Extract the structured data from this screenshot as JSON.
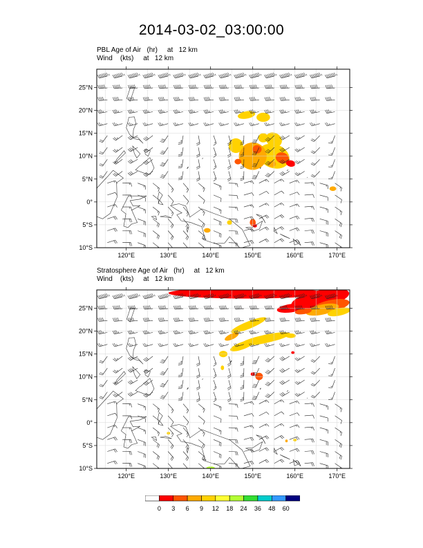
{
  "title": "2014-03-02_03:00:00",
  "panels": [
    {
      "id": "pbl",
      "line1": "PBL Age of Air   (hr)     at   12 km",
      "line2": "Wind    (kts)     at   12 km"
    },
    {
      "id": "strat",
      "line1": "Stratosphere Age of Air   (hr)     at   12 km",
      "line2": "Wind    (kts)     at   12 km"
    }
  ],
  "map": {
    "lon_range": [
      113,
      173
    ],
    "lat_range": [
      -10,
      29
    ],
    "lon_ticks": [
      120,
      130,
      140,
      150,
      160,
      170
    ],
    "lon_tick_labels": [
      "120°E",
      "130°E",
      "140°E",
      "150°E",
      "160°E",
      "170°E"
    ],
    "lat_ticks": [
      25,
      20,
      15,
      10,
      5,
      0,
      -5,
      -10
    ],
    "lat_tick_labels": [
      "25°N",
      "20°N",
      "15°N",
      "10°N",
      "5°N",
      "0°",
      "5°S",
      "10°S"
    ],
    "grid": true
  },
  "colorbar": {
    "levels": [
      "0",
      "3",
      "6",
      "9",
      "12",
      "18",
      "24",
      "36",
      "48",
      "60"
    ],
    "colors": [
      "#ffffff",
      "#ff0000",
      "#ff5500",
      "#ffaa00",
      "#ffd200",
      "#ffff33",
      "#b4ff33",
      "#33dd33",
      "#00cccc",
      "#3399ff",
      "#000080"
    ]
  }
}
